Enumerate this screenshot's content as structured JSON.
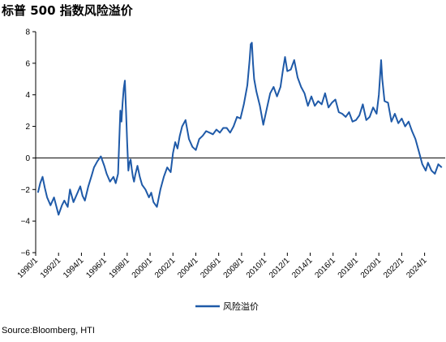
{
  "title": "标普 500 指数风险溢价",
  "source": "Source:Bloomberg, HTI",
  "chart_data": {
    "type": "line",
    "title": "标普 500 指数风险溢价",
    "xlabel": "",
    "ylabel": "",
    "ylim": [
      -6,
      8
    ],
    "yticks": [
      "8",
      "6",
      "4",
      "2",
      "0",
      "−2",
      "−4",
      "−6"
    ],
    "xticks": [
      "1990/1",
      "1992/1",
      "1994/1",
      "1996/1",
      "1998/1",
      "2000/1",
      "2002/1",
      "2004/1",
      "2006/1",
      "2008/1",
      "2010/1",
      "2012/1",
      "2014/1",
      "2016/1",
      "2018/1",
      "2020/1",
      "2022/1",
      "2024/1"
    ],
    "xlim": [
      1990.0,
      2025.8
    ],
    "grid": false,
    "legend": "bottom-center",
    "color": "#1f5aa8",
    "series": [
      {
        "name": "风险溢价",
        "x": [
          1990.2,
          1990.4,
          1990.6,
          1990.8,
          1991.0,
          1991.3,
          1991.6,
          1992.0,
          1992.3,
          1992.5,
          1992.8,
          1993.0,
          1993.3,
          1993.6,
          1993.9,
          1994.1,
          1994.3,
          1994.6,
          1994.9,
          1995.1,
          1995.4,
          1995.7,
          1996.0,
          1996.2,
          1996.5,
          1996.8,
          1997.0,
          1997.2,
          1997.4,
          1997.5,
          1997.6,
          1997.7,
          1997.8,
          1997.9,
          1998.0,
          1998.1,
          1998.2,
          1998.3,
          1998.4,
          1998.5,
          1998.6,
          1998.7,
          1998.9,
          1999.1,
          1999.3,
          1999.6,
          1999.9,
          2000.1,
          2000.3,
          2000.6,
          2000.9,
          2001.2,
          2001.5,
          2001.8,
          2002.0,
          2002.2,
          2002.4,
          2002.6,
          2002.8,
          2003.1,
          2003.4,
          2003.7,
          2004.0,
          2004.3,
          2004.6,
          2004.9,
          2005.2,
          2005.5,
          2005.8,
          2006.1,
          2006.4,
          2006.7,
          2007.0,
          2007.3,
          2007.6,
          2007.9,
          2008.2,
          2008.5,
          2008.7,
          2008.8,
          2008.9,
          2009.0,
          2009.1,
          2009.3,
          2009.6,
          2009.9,
          2010.2,
          2010.5,
          2010.8,
          2011.1,
          2011.4,
          2011.6,
          2011.8,
          2012.0,
          2012.3,
          2012.6,
          2012.9,
          2013.2,
          2013.5,
          2013.8,
          2014.1,
          2014.4,
          2014.7,
          2015.0,
          2015.3,
          2015.6,
          2015.9,
          2016.2,
          2016.5,
          2016.8,
          2017.1,
          2017.4,
          2017.7,
          2018.0,
          2018.3,
          2018.6,
          2018.9,
          2019.2,
          2019.5,
          2019.8,
          2020.0,
          2020.1,
          2020.2,
          2020.3,
          2020.5,
          2020.8,
          2021.1,
          2021.4,
          2021.7,
          2022.0,
          2022.3,
          2022.6,
          2022.9,
          2023.2,
          2023.5,
          2023.8,
          2024.1,
          2024.3,
          2024.6,
          2024.9,
          2025.2,
          2025.5
        ],
        "y": [
          -2.2,
          -1.6,
          -1.2,
          -1.9,
          -2.5,
          -3.0,
          -2.5,
          -3.6,
          -3.0,
          -2.7,
          -3.1,
          -2.0,
          -2.8,
          -2.3,
          -1.8,
          -2.4,
          -2.7,
          -1.8,
          -1.1,
          -0.6,
          -0.2,
          0.1,
          -0.5,
          -1.0,
          -1.5,
          -1.2,
          -1.6,
          -1.0,
          3.0,
          2.3,
          3.5,
          4.4,
          4.9,
          3.0,
          1.0,
          -0.8,
          -0.3,
          -0.1,
          -0.7,
          -1.2,
          -1.5,
          -1.1,
          -0.5,
          -1.2,
          -1.7,
          -2.0,
          -2.5,
          -2.2,
          -2.8,
          -3.1,
          -2.0,
          -1.2,
          -0.6,
          -0.9,
          0.3,
          1.0,
          0.6,
          1.4,
          2.0,
          2.4,
          1.2,
          0.7,
          0.5,
          1.2,
          1.4,
          1.7,
          1.6,
          1.5,
          1.8,
          1.6,
          1.9,
          1.9,
          1.6,
          2.0,
          2.6,
          2.5,
          3.4,
          4.6,
          6.2,
          7.2,
          7.3,
          6.0,
          5.0,
          4.2,
          3.3,
          2.1,
          3.1,
          4.1,
          4.5,
          3.9,
          4.5,
          5.5,
          6.4,
          5.5,
          5.6,
          6.2,
          5.1,
          4.5,
          4.1,
          3.3,
          3.9,
          3.3,
          3.6,
          3.4,
          4.1,
          3.2,
          3.5,
          3.7,
          2.9,
          2.8,
          2.6,
          2.9,
          2.3,
          2.4,
          2.7,
          3.4,
          2.4,
          2.6,
          3.2,
          2.8,
          4.0,
          5.1,
          6.2,
          5.0,
          3.6,
          3.5,
          2.3,
          2.8,
          2.2,
          2.5,
          2.0,
          2.3,
          1.7,
          1.2,
          0.4,
          -0.4,
          -0.8,
          -0.3,
          -0.8,
          -1.0,
          -0.4,
          -0.6
        ]
      }
    ]
  }
}
